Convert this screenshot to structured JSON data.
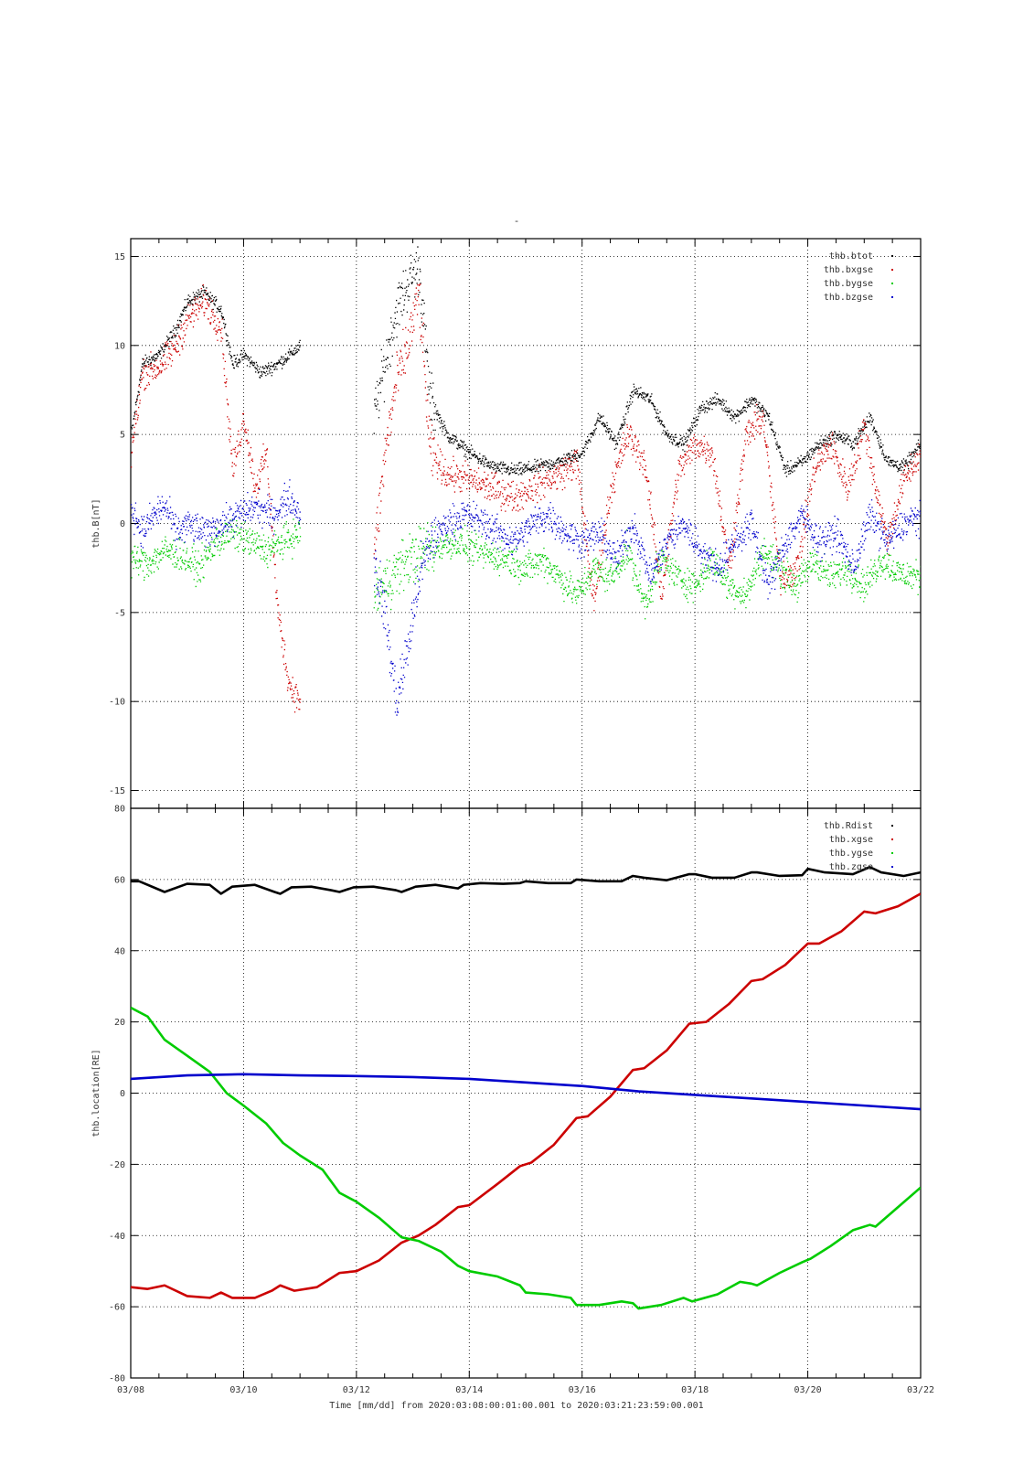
{
  "figure": {
    "title_mark": "-",
    "xlabel": "Time [mm/dd]  from 2020:03:08:00:01:00.001  to  2020:03:21:23:59:00.001",
    "x_ticks": [
      "03/08",
      "03/10",
      "03/12",
      "03/14",
      "03/16",
      "03/18",
      "03/20",
      "03/22"
    ]
  },
  "chart_data": [
    {
      "type": "scatter",
      "title": "",
      "ylabel": "thb.B[nT]",
      "xlim_days": [
        8,
        22
      ],
      "ylim": [
        -16,
        16
      ],
      "y_ticks": [
        15,
        10,
        5,
        0,
        -5,
        -10,
        -15
      ],
      "grid": true,
      "legend_position": "top-right",
      "data_gap": [
        11.0,
        12.3
      ],
      "series": [
        {
          "name": "thb.btot",
          "color": "#000000",
          "x": [
            8.0,
            8.2,
            8.5,
            8.8,
            9.0,
            9.3,
            9.6,
            9.8,
            10.0,
            10.3,
            10.6,
            10.8,
            11.0,
            12.3,
            12.5,
            12.7,
            12.9,
            13.1,
            13.3,
            13.6,
            14.0,
            14.4,
            14.8,
            15.2,
            15.6,
            16.0,
            16.3,
            16.6,
            16.9,
            17.2,
            17.5,
            17.8,
            18.1,
            18.4,
            18.7,
            19.0,
            19.3,
            19.6,
            19.9,
            20.2,
            20.5,
            20.8,
            21.1,
            21.4,
            21.7,
            22.0
          ],
          "y": [
            5.0,
            9.0,
            9.5,
            11.0,
            12.5,
            13.0,
            12.0,
            9.0,
            9.5,
            8.5,
            9.0,
            9.5,
            10.0,
            6.0,
            9.0,
            12.0,
            13.5,
            14.5,
            7.0,
            5.0,
            4.0,
            3.2,
            3.0,
            3.2,
            3.5,
            4.0,
            6.0,
            4.5,
            7.5,
            7.0,
            5.0,
            4.5,
            6.5,
            7.0,
            6.0,
            7.0,
            6.0,
            3.0,
            3.5,
            4.5,
            5.0,
            4.5,
            6.0,
            3.5,
            3.2,
            4.5
          ]
        },
        {
          "name": "thb.bxgse",
          "color": "#cc0000",
          "x": [
            8.0,
            8.2,
            8.5,
            8.8,
            9.0,
            9.3,
            9.6,
            9.8,
            10.0,
            10.2,
            10.4,
            10.6,
            10.8,
            11.0,
            12.3,
            12.5,
            12.7,
            12.9,
            13.1,
            13.3,
            13.6,
            14.0,
            14.4,
            14.8,
            15.2,
            15.6,
            15.9,
            16.2,
            16.5,
            16.8,
            17.1,
            17.4,
            17.7,
            18.0,
            18.3,
            18.6,
            18.9,
            19.2,
            19.5,
            19.8,
            20.1,
            20.4,
            20.7,
            21.0,
            21.2,
            21.4,
            21.7,
            22.0
          ],
          "y": [
            4.0,
            8.5,
            8.8,
            10.0,
            11.5,
            12.5,
            11.0,
            3.0,
            6.0,
            2.0,
            4.0,
            -5.0,
            -9.0,
            -10.0,
            -2.0,
            4.0,
            8.0,
            10.0,
            13.0,
            4.0,
            2.8,
            2.5,
            2.0,
            1.5,
            2.2,
            2.8,
            3.5,
            -4.5,
            2.0,
            5.0,
            3.5,
            -4.0,
            3.0,
            4.5,
            4.0,
            -2.5,
            5.0,
            6.0,
            -3.0,
            -2.5,
            3.0,
            4.5,
            2.0,
            5.5,
            2.0,
            -1.0,
            2.5,
            4.0
          ]
        },
        {
          "name": "thb.bygse",
          "color": "#00cc00",
          "x": [
            8.0,
            8.3,
            8.6,
            8.9,
            9.2,
            9.5,
            9.8,
            10.1,
            10.4,
            10.7,
            11.0,
            12.3,
            12.6,
            12.9,
            13.2,
            13.5,
            13.8,
            14.1,
            14.4,
            14.7,
            15.0,
            15.3,
            15.6,
            15.9,
            16.2,
            16.5,
            16.8,
            17.1,
            17.4,
            17.7,
            18.0,
            18.3,
            18.6,
            18.9,
            19.2,
            19.5,
            19.8,
            20.1,
            20.4,
            20.7,
            21.0,
            21.3,
            21.6,
            22.0
          ],
          "y": [
            -2.0,
            -2.2,
            -1.5,
            -1.8,
            -2.5,
            -1.0,
            -0.5,
            -1.0,
            -1.5,
            -1.0,
            -0.5,
            -4.0,
            -3.0,
            -2.0,
            -1.5,
            -1.2,
            -1.0,
            -1.5,
            -1.8,
            -2.0,
            -2.5,
            -2.0,
            -3.0,
            -4.0,
            -2.5,
            -3.0,
            -1.5,
            -4.5,
            -2.0,
            -3.0,
            -3.5,
            -2.0,
            -3.5,
            -4.0,
            -1.5,
            -2.5,
            -3.5,
            -2.0,
            -3.0,
            -2.5,
            -3.5,
            -2.0,
            -2.8,
            -3.0
          ]
        },
        {
          "name": "thb.bzgse",
          "color": "#0000cc",
          "x": [
            8.0,
            8.2,
            8.4,
            8.6,
            8.8,
            9.0,
            9.3,
            9.6,
            9.9,
            10.2,
            10.5,
            10.8,
            11.0,
            12.3,
            12.5,
            12.7,
            12.9,
            13.1,
            13.3,
            13.6,
            13.9,
            14.2,
            14.5,
            14.8,
            15.1,
            15.4,
            15.7,
            16.0,
            16.3,
            16.6,
            16.9,
            17.2,
            17.5,
            17.8,
            18.1,
            18.4,
            18.7,
            19.0,
            19.3,
            19.6,
            19.9,
            20.2,
            20.5,
            20.8,
            21.1,
            21.4,
            21.7,
            22.0
          ],
          "y": [
            1.0,
            -0.5,
            0.5,
            1.0,
            -0.5,
            0.0,
            -0.5,
            0.0,
            0.5,
            1.0,
            0.5,
            1.5,
            0.5,
            -2.0,
            -5.0,
            -10.0,
            -7.0,
            -3.0,
            -1.0,
            0.0,
            0.5,
            0.2,
            -0.5,
            -1.0,
            0.0,
            0.5,
            -0.5,
            -1.0,
            -0.5,
            -2.0,
            0.0,
            -3.0,
            -1.0,
            0.0,
            -1.5,
            -2.5,
            -1.0,
            0.0,
            -3.5,
            -1.0,
            0.5,
            -1.0,
            -0.5,
            -2.5,
            0.5,
            -1.0,
            0.0,
            0.5
          ]
        }
      ]
    },
    {
      "type": "line",
      "title": "",
      "ylabel": "thb.location[RE]",
      "xlim_days": [
        8,
        22
      ],
      "ylim": [
        -80,
        80
      ],
      "y_ticks": [
        80,
        60,
        40,
        20,
        0,
        -20,
        -40,
        -60,
        -80
      ],
      "grid": true,
      "legend_position": "top-right",
      "series": [
        {
          "name": "thb.Rdist",
          "color": "#000000",
          "x": [
            8.0,
            8.15,
            8.6,
            9.0,
            9.4,
            9.6,
            9.8,
            10.2,
            10.55,
            10.65,
            10.85,
            11.2,
            11.55,
            11.7,
            11.95,
            12.3,
            12.7,
            12.8,
            13.05,
            13.4,
            13.8,
            13.9,
            14.2,
            14.6,
            14.9,
            15.0,
            15.4,
            15.8,
            15.9,
            16.3,
            16.7,
            16.9,
            17.1,
            17.5,
            17.9,
            18.0,
            18.3,
            18.7,
            19.0,
            19.1,
            19.5,
            19.9,
            20.0,
            20.3,
            20.8,
            21.1,
            21.3,
            21.7,
            22.0
          ],
          "y": [
            59.5,
            59.5,
            56.5,
            58.8,
            58.5,
            56.0,
            58.0,
            58.5,
            56.5,
            56.0,
            57.8,
            58.0,
            57.0,
            56.5,
            57.8,
            58.0,
            57.0,
            56.5,
            58.0,
            58.5,
            57.5,
            58.5,
            59.0,
            58.8,
            59.0,
            59.5,
            59.0,
            59.0,
            60.0,
            59.5,
            59.5,
            61.0,
            60.5,
            59.8,
            61.5,
            61.5,
            60.5,
            60.5,
            62.0,
            62.0,
            61.0,
            61.2,
            63.0,
            62.0,
            61.5,
            63.5,
            62.0,
            61.0,
            62.0
          ]
        },
        {
          "name": "thb.xgse",
          "color": "#cc0000",
          "x": [
            8.0,
            8.3,
            8.6,
            9.0,
            9.4,
            9.6,
            9.8,
            10.2,
            10.5,
            10.65,
            10.9,
            11.3,
            11.7,
            12.0,
            12.4,
            12.8,
            13.1,
            13.4,
            13.8,
            14.0,
            14.5,
            14.9,
            15.1,
            15.5,
            15.9,
            16.1,
            16.5,
            16.9,
            17.1,
            17.5,
            17.9,
            18.2,
            18.6,
            19.0,
            19.2,
            19.6,
            20.0,
            20.2,
            20.6,
            21.0,
            21.2,
            21.6,
            22.0
          ],
          "y": [
            -54.5,
            -55.0,
            -54.0,
            -57.0,
            -57.5,
            -56.0,
            -57.5,
            -57.5,
            -55.5,
            -54.0,
            -55.5,
            -54.5,
            -50.5,
            -50.0,
            -47.0,
            -42.0,
            -40.0,
            -37.0,
            -32.0,
            -31.5,
            -25.5,
            -20.5,
            -19.5,
            -14.5,
            -7.0,
            -6.5,
            -1.0,
            6.5,
            7.0,
            12.0,
            19.5,
            20.0,
            25.0,
            31.5,
            32.0,
            36.0,
            42.0,
            42.0,
            45.5,
            51.0,
            50.5,
            52.5,
            56.0
          ]
        },
        {
          "name": "thb.ygse",
          "color": "#00cc00",
          "x": [
            8.0,
            8.3,
            8.6,
            9.0,
            9.4,
            9.7,
            10.0,
            10.4,
            10.7,
            11.0,
            11.4,
            11.7,
            12.0,
            12.4,
            12.8,
            13.1,
            13.5,
            13.8,
            14.0,
            14.5,
            14.9,
            15.0,
            15.4,
            15.8,
            15.9,
            16.3,
            16.7,
            16.9,
            17.0,
            17.4,
            17.8,
            17.95,
            18.4,
            18.8,
            19.0,
            19.1,
            19.5,
            19.9,
            20.05,
            20.4,
            20.8,
            21.1,
            21.2,
            21.6,
            22.0
          ],
          "y": [
            24.0,
            21.5,
            15.0,
            10.5,
            6.0,
            0.0,
            -3.5,
            -8.5,
            -14.0,
            -17.5,
            -21.5,
            -28.0,
            -30.5,
            -35.0,
            -40.5,
            -41.5,
            -44.5,
            -48.5,
            -50.0,
            -51.5,
            -54.0,
            -56.0,
            -56.5,
            -57.5,
            -59.5,
            -59.5,
            -58.5,
            -59.0,
            -60.5,
            -59.5,
            -57.5,
            -58.5,
            -56.5,
            -53.0,
            -53.5,
            -54.0,
            -50.5,
            -47.5,
            -46.5,
            -43.0,
            -38.5,
            -37.0,
            -37.5,
            -32.0,
            -26.5
          ]
        },
        {
          "name": "thb.zgse",
          "color": "#0000cc",
          "x": [
            8.0,
            9.0,
            10.0,
            11.0,
            12.0,
            13.0,
            14.0,
            15.0,
            16.0,
            17.0,
            18.0,
            19.0,
            20.0,
            21.0,
            22.0
          ],
          "y": [
            4.0,
            5.0,
            5.3,
            5.0,
            4.8,
            4.5,
            4.0,
            3.0,
            2.0,
            0.5,
            -0.5,
            -1.5,
            -2.5,
            -3.5,
            -4.5
          ]
        }
      ]
    }
  ]
}
